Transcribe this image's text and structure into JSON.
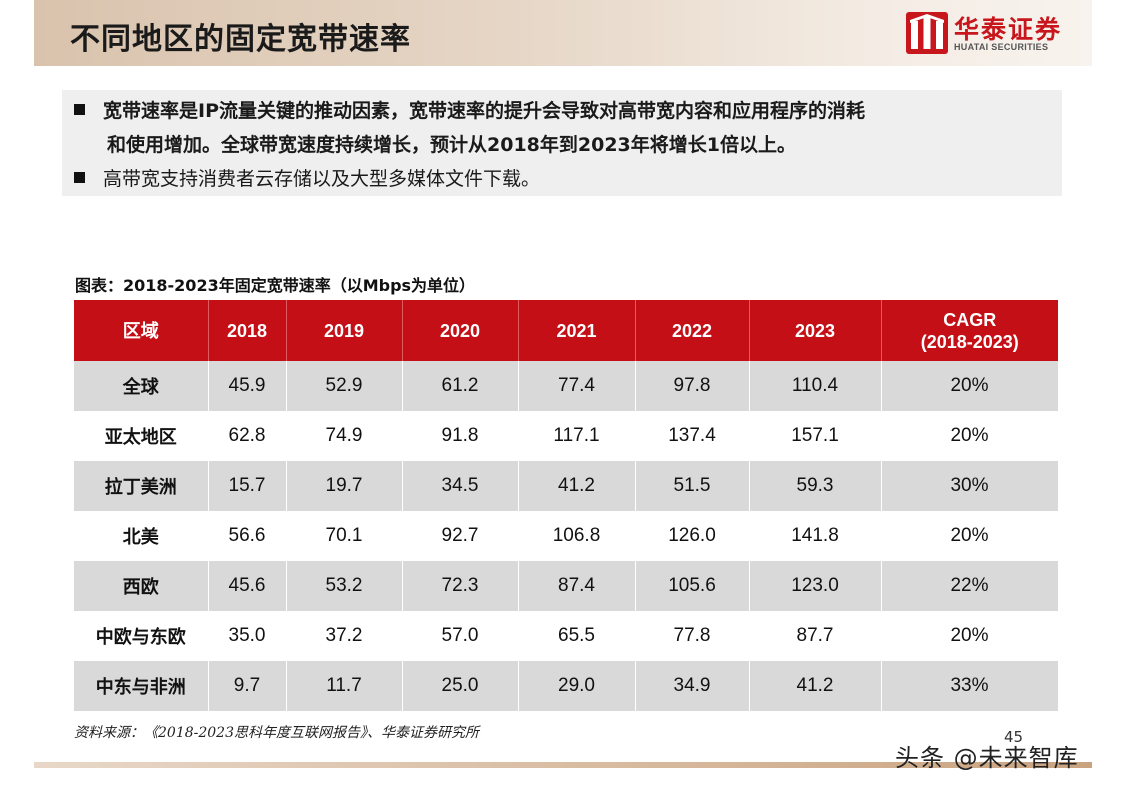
{
  "header": {
    "title": "不同地区的固定宽带速率",
    "logo_cn": "华泰证券",
    "logo_en": "HUATAI SECURITIES"
  },
  "bullets": {
    "b1_line1": "宽带速率是IP流量关键的推动因素，宽带速率的提升会导致对高带宽内容和应用程序的消耗",
    "b1_line2": "和使用增加。全球带宽速度持续增长，预计从2018年到2023年将增长1倍以上。",
    "b2": "高带宽支持消费者云存储以及大型多媒体文件下载。"
  },
  "table": {
    "caption": "图表：2018-2023年固定宽带速率（以Mbps为单位）",
    "headers": [
      "区域",
      "2018",
      "2019",
      "2020",
      "2021",
      "2022",
      "2023",
      "CAGR",
      "(2018-2023)"
    ],
    "rows": [
      [
        "全球",
        "45.9",
        "52.9",
        "61.2",
        "77.4",
        "97.8",
        "110.4",
        "20%"
      ],
      [
        "亚太地区",
        "62.8",
        "74.9",
        "91.8",
        "117.1",
        "137.4",
        "157.1",
        "20%"
      ],
      [
        "拉丁美洲",
        "15.7",
        "19.7",
        "34.5",
        "41.2",
        "51.5",
        "59.3",
        "30%"
      ],
      [
        "北美",
        "56.6",
        "70.1",
        "92.7",
        "106.8",
        "126.0",
        "141.8",
        "20%"
      ],
      [
        "西欧",
        "45.6",
        "53.2",
        "72.3",
        "87.4",
        "105.6",
        "123.0",
        "22%"
      ],
      [
        "中欧与东欧",
        "35.0",
        "37.2",
        "57.0",
        "65.5",
        "77.8",
        "87.7",
        "20%"
      ],
      [
        "中东与非洲",
        "9.7",
        "11.7",
        "25.0",
        "29.0",
        "34.9",
        "41.2",
        "33%"
      ]
    ]
  },
  "footer": {
    "source": "资料来源：《2018-2023思科年度互联网报告》、华泰证券研究所",
    "page_number": "45",
    "watermark": "头条 @未来智库"
  },
  "colors": {
    "header_red": "#c40f16",
    "stripe_gray": "#d9d9d9",
    "brand_red": "#c8161d"
  }
}
